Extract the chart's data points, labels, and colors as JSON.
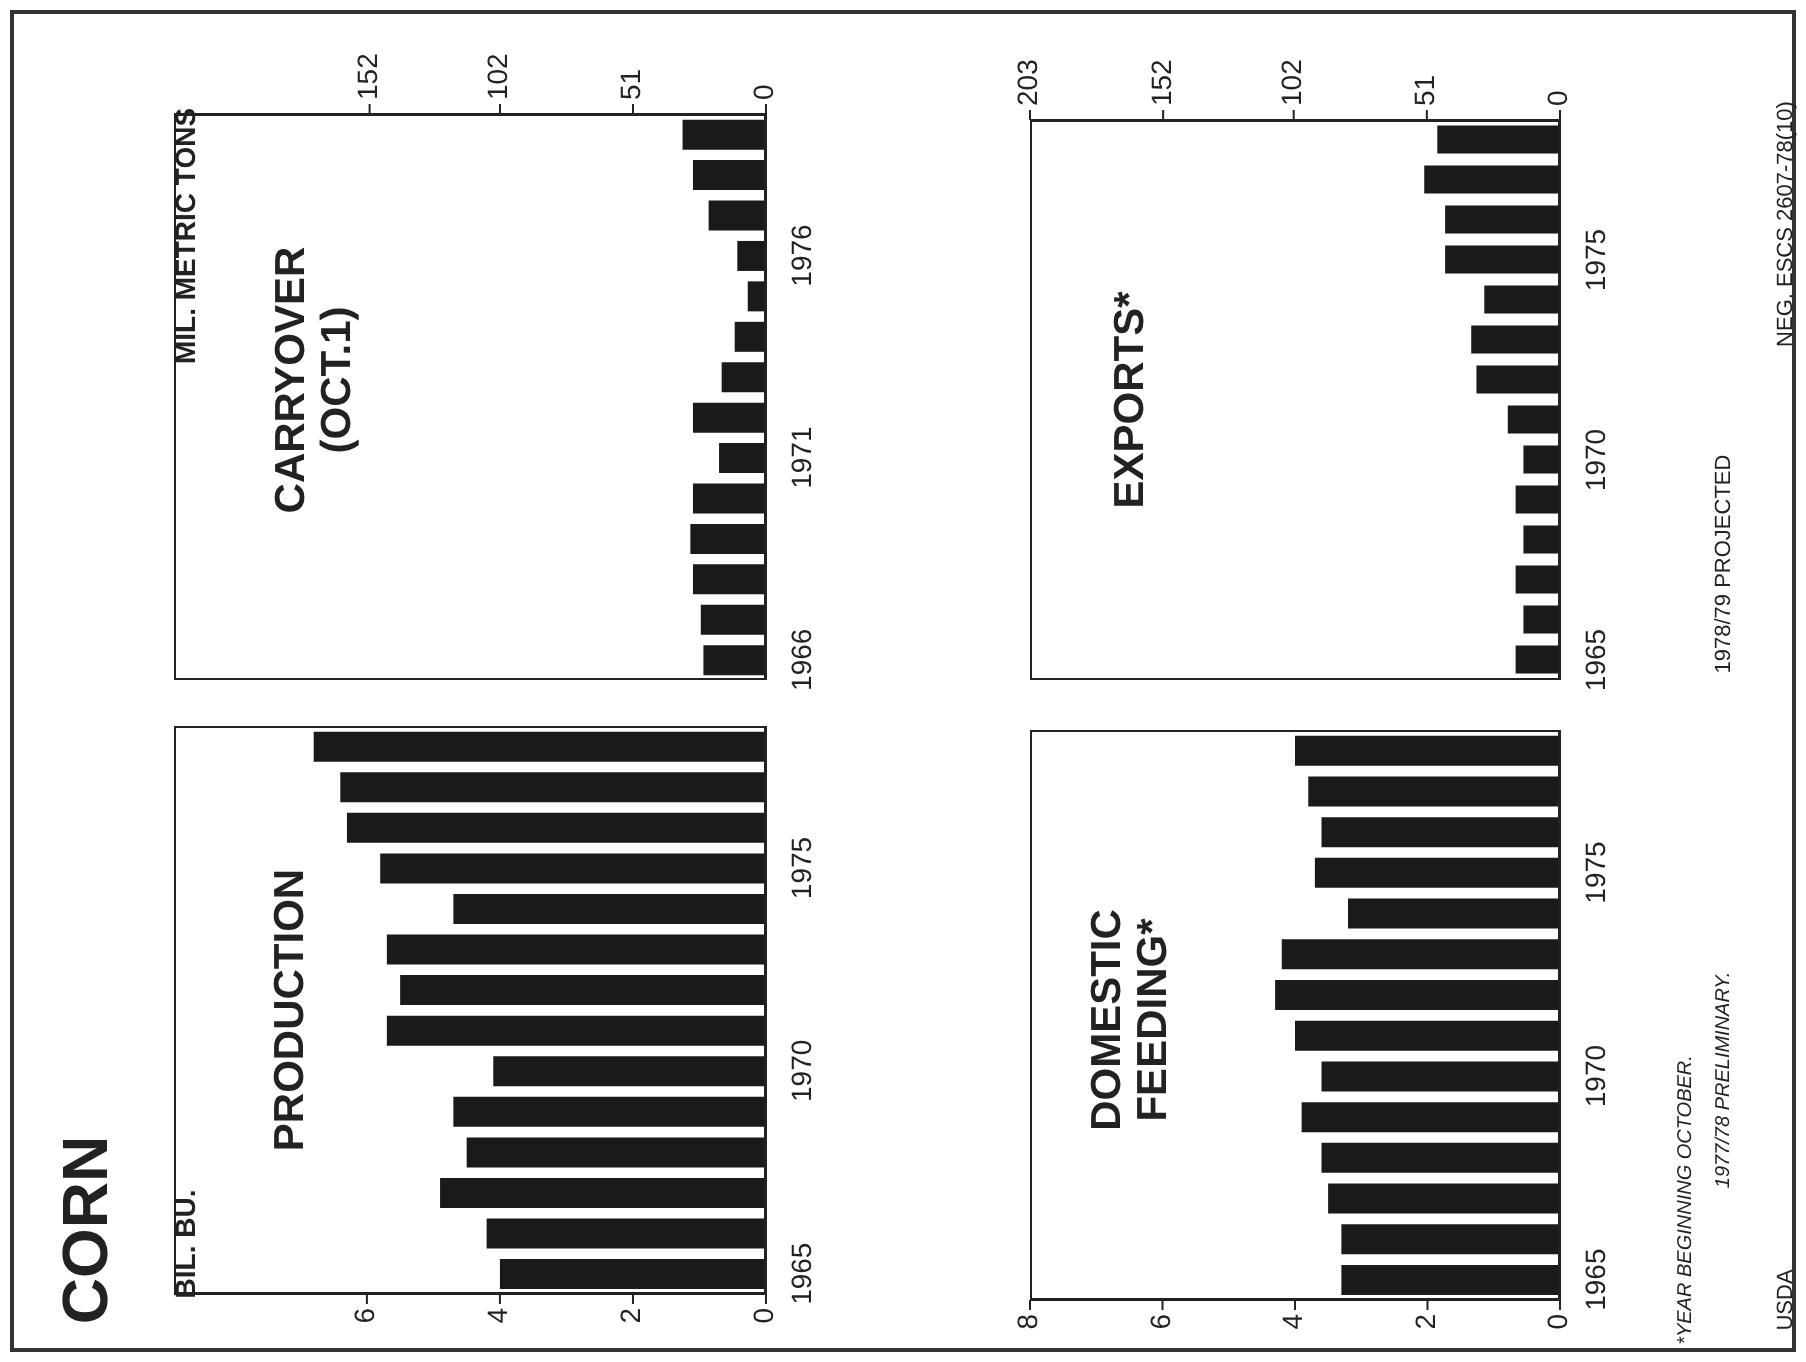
{
  "chart_data": [
    {
      "type": "bar",
      "orientation": "horizontal",
      "title": "CORN",
      "subtitle": "PRODUCTION",
      "ylabel": "BIL. BU.",
      "categories": [
        null,
        null,
        null,
        "1975",
        null,
        null,
        null,
        null,
        "1970",
        null,
        null,
        null,
        null,
        "1965"
      ],
      "values": [
        6.8,
        6.4,
        6.3,
        5.8,
        4.7,
        5.7,
        5.5,
        5.7,
        4.1,
        4.7,
        4.5,
        4.9,
        4.2,
        4.0
      ],
      "color": "#1a1a1a",
      "xlim": [
        8.9,
        0
      ],
      "xticks": [
        0,
        2,
        4,
        6
      ],
      "annotations": [
        "*YEAR BEGINNING OCTOBER.",
        "1977/78 PRELIMINARY.",
        "1978/79 PROJECTED",
        "USDA",
        "NEG. ESCS 2607-78(10)"
      ]
    },
    {
      "type": "bar",
      "orientation": "horizontal",
      "title": "CARRYOVER (OCT.1)",
      "ylabel": "MIL. METRIC TONS",
      "categories": [
        null,
        null,
        null,
        "1976",
        null,
        null,
        null,
        null,
        "1971",
        null,
        null,
        null,
        null,
        "1966"
      ],
      "values": [
        32,
        28,
        22,
        11,
        7,
        12,
        17,
        28,
        18,
        28,
        29,
        28,
        25,
        24
      ],
      "color": "#1a1a1a",
      "xlim": [
        227,
        0
      ],
      "xticks": [
        0,
        51,
        102,
        152
      ]
    },
    {
      "type": "bar",
      "orientation": "horizontal",
      "title": "DOMESTIC FEEDING*",
      "categories": [
        null,
        null,
        null,
        "1975",
        null,
        null,
        null,
        null,
        "1970",
        null,
        null,
        null,
        null,
        "1965"
      ],
      "values": [
        4.0,
        3.8,
        3.6,
        3.7,
        3.2,
        4.2,
        4.3,
        4.0,
        3.6,
        3.9,
        3.6,
        3.5,
        3.3,
        3.3
      ],
      "color": "#1a1a1a",
      "xlim": [
        8,
        0
      ],
      "xticks": [
        0,
        2,
        4,
        6,
        8
      ]
    },
    {
      "type": "bar",
      "orientation": "horizontal",
      "title": "EXPORTS*",
      "categories": [
        null,
        null,
        null,
        "1975",
        null,
        null,
        null,
        null,
        "1970",
        null,
        null,
        null,
        null,
        "1965"
      ],
      "values": [
        47,
        52,
        44,
        44,
        29,
        34,
        32,
        20,
        14,
        17,
        14,
        17,
        14,
        17
      ],
      "color": "#1a1a1a",
      "xlim": [
        203,
        0
      ],
      "xticks": [
        0,
        51,
        102,
        152,
        203
      ]
    }
  ]
}
